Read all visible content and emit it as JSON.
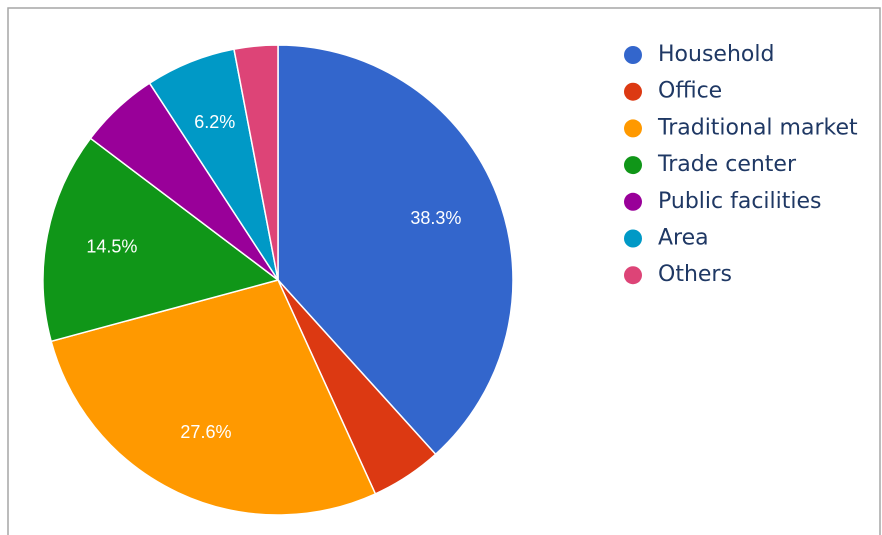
{
  "chart_data": {
    "type": "pie",
    "categories": [
      "Household",
      "Office",
      "Traditional market",
      "Trade center",
      "Public facilities",
      "Area",
      "Others"
    ],
    "values": [
      38.3,
      4.9,
      27.6,
      14.5,
      5.5,
      6.2,
      3.0
    ],
    "value_labels": [
      "38.3%",
      null,
      "27.6%",
      "14.5%",
      null,
      "6.2%",
      null
    ],
    "colors": [
      "#3366cc",
      "#dc3912",
      "#ff9900",
      "#109618",
      "#990099",
      "#0099c6",
      "#dd4477"
    ],
    "legend": "right"
  }
}
